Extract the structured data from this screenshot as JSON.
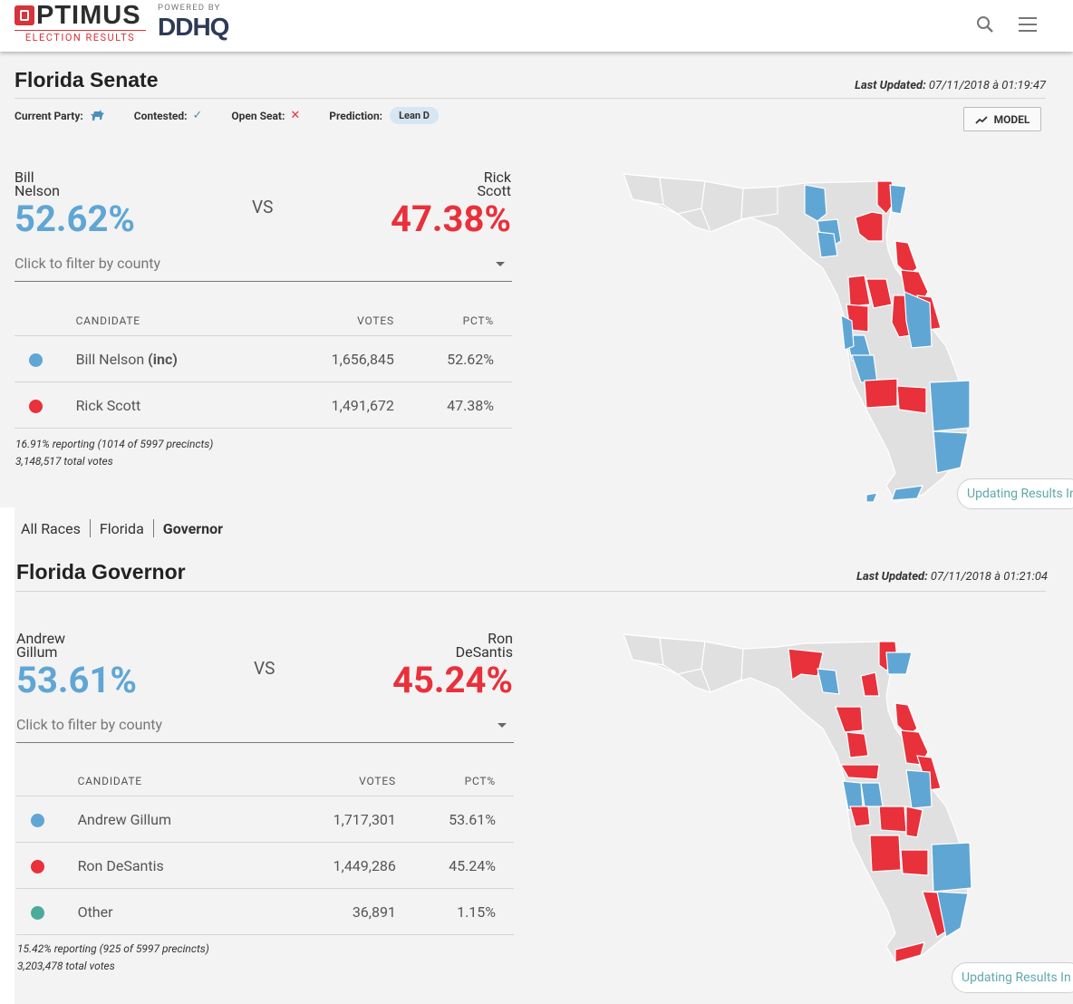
{
  "header": {
    "logo_word": "PTIMUS",
    "logo_sub": "ELECTION RESULTS",
    "powered_by": "POWERED BY",
    "partner": "DDHQ"
  },
  "colors": {
    "dem": "#60a6d4",
    "rep": "#e8313b",
    "other": "#4aab9b",
    "county": "#e0e0e0"
  },
  "senate": {
    "title": "Florida Senate",
    "last_updated_label": "Last Updated:",
    "last_updated": "07/11/2018 à 01:19:47",
    "meta": {
      "current_party_label": "Current Party:",
      "current_party_icon": "donkey-icon",
      "contested_label": "Contested:",
      "open_seat_label": "Open Seat:",
      "prediction_label": "Prediction:",
      "prediction": "Lean D"
    },
    "model_button": "MODEL",
    "left": {
      "first": "Bill",
      "last": "Nelson",
      "pct": "52.62%"
    },
    "vs": "VS",
    "right": {
      "first": "Rick",
      "last": "Scott",
      "pct": "47.38%"
    },
    "county_placeholder": "Click to filter by county",
    "table": {
      "headers": [
        "CANDIDATE",
        "VOTES",
        "PCT%"
      ],
      "rows": [
        {
          "name": "Bill Nelson",
          "suffix": "(inc)",
          "votes": "1,656,845",
          "pct": "52.62%",
          "color": "#60a6d4"
        },
        {
          "name": "Rick Scott",
          "suffix": "",
          "votes": "1,491,672",
          "pct": "47.38%",
          "color": "#e8313b"
        }
      ]
    },
    "reporting": "16.91% reporting (1014 of 5997 precincts)",
    "total_votes": "3,148,517 total votes",
    "updating": "Updating Results In"
  },
  "breadcrumb": {
    "all": "All Races",
    "state": "Florida",
    "current": "Governor"
  },
  "governor": {
    "title": "Florida Governor",
    "last_updated_label": "Last Updated:",
    "last_updated": "07/11/2018 à 01:21:04",
    "left": {
      "first": "Andrew",
      "last": "Gillum",
      "pct": "53.61%"
    },
    "vs": "VS",
    "right": {
      "first": "Ron",
      "last": "DeSantis",
      "pct": "45.24%"
    },
    "county_placeholder": "Click to filter by county",
    "table": {
      "headers": [
        "CANDIDATE",
        "VOTES",
        "PCT%"
      ],
      "rows": [
        {
          "name": "Andrew Gillum",
          "votes": "1,717,301",
          "pct": "53.61%",
          "color": "#60a6d4"
        },
        {
          "name": "Ron DeSantis",
          "votes": "1,449,286",
          "pct": "45.24%",
          "color": "#e8313b"
        },
        {
          "name": "Other",
          "votes": "36,891",
          "pct": "1.15%",
          "color": "#4aab9b"
        }
      ]
    },
    "reporting": "15.42% reporting (925 of 5997 precincts)",
    "total_votes": "3,203,478 total votes",
    "updating": "Updating Results In"
  }
}
